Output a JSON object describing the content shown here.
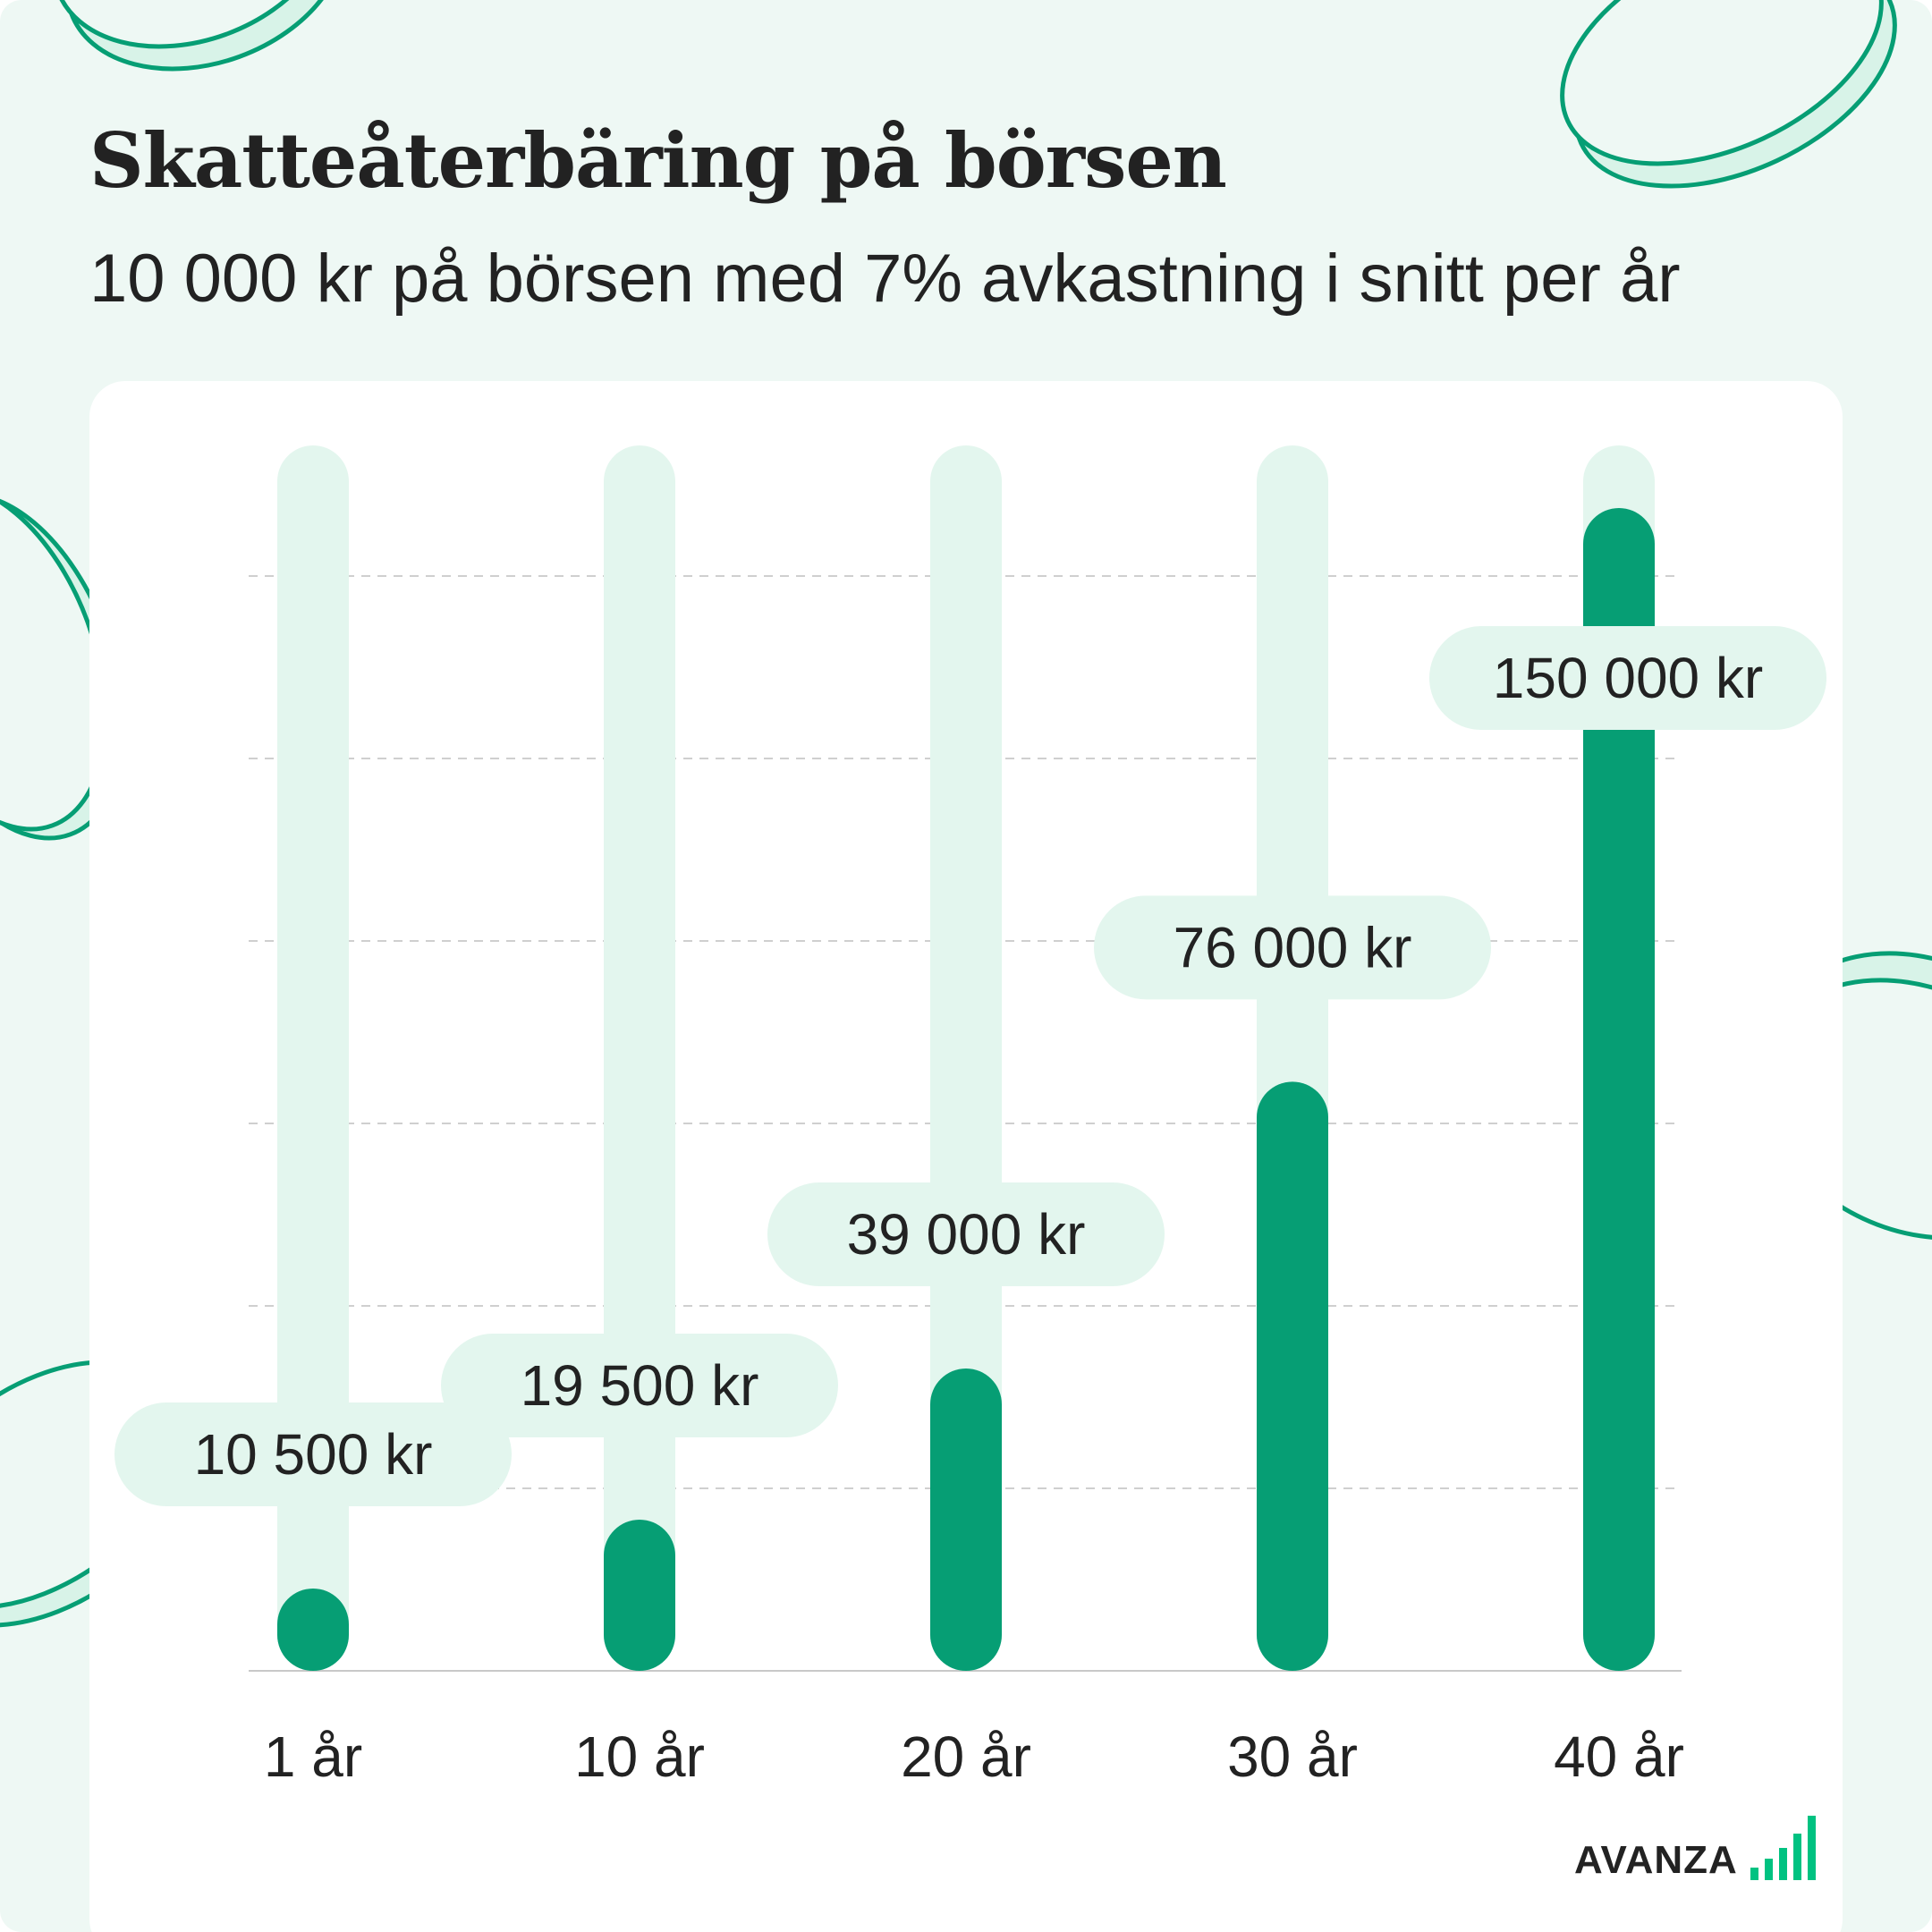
{
  "title": "Skatteåterbäring på börsen",
  "subtitle": "10 000 kr på börsen med 7% avkastning i snitt per år",
  "brand": {
    "name": "AVANZA",
    "icon": "avanza-bars-icon",
    "color": "#00c281"
  },
  "colors": {
    "background": "#eef8f4",
    "bar": "#069e74",
    "track": "#e3f6ee",
    "label_bg": "#e3f6ee",
    "coin_stroke": "#069e74",
    "coin_fill": "#d8f3e8",
    "text": "#222222"
  },
  "chart_data": {
    "type": "bar",
    "title": "Skatteåterbäring på börsen",
    "subtitle": "10 000 kr på börsen med 7% avkastning i snitt per år",
    "categories": [
      "1 år",
      "10 år",
      "20 år",
      "30 år",
      "40 år"
    ],
    "values": [
      10500,
      19500,
      39000,
      76000,
      150000
    ],
    "data_labels": [
      "10 500 kr",
      "19 500 kr",
      "39 000 kr",
      "76 000 kr",
      "150 000 kr"
    ],
    "unit": "kr",
    "ylim": [
      0,
      150000
    ],
    "grid": true,
    "xlabel": "",
    "ylabel": ""
  }
}
